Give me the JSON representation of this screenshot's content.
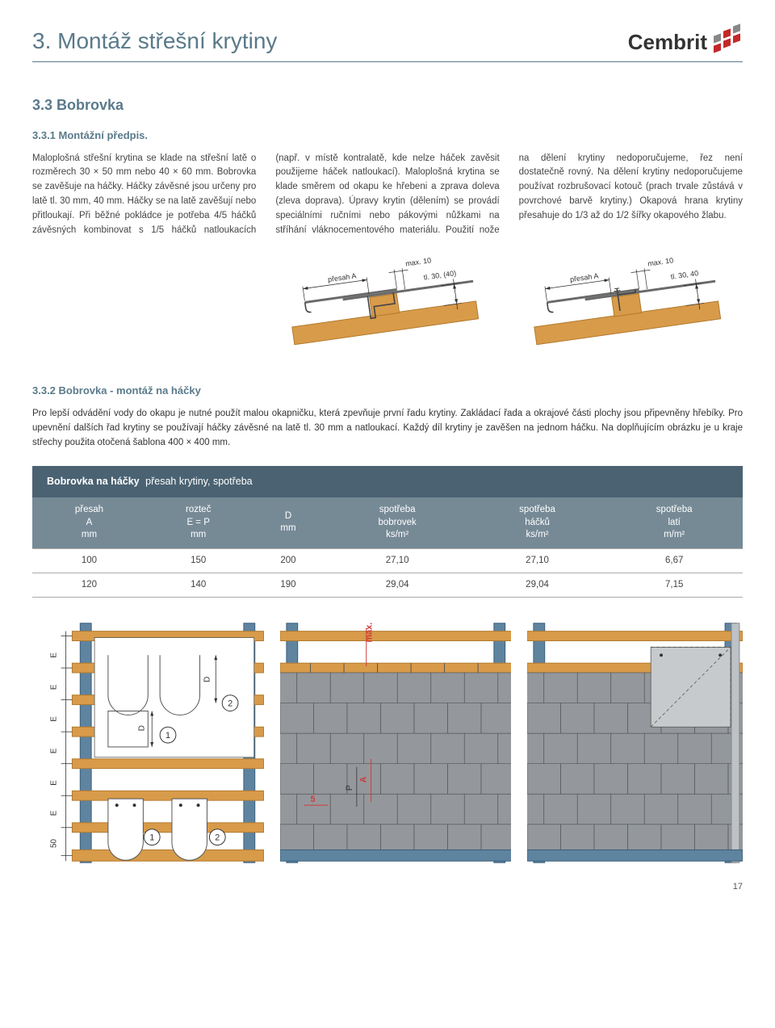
{
  "brand": "Cembrit",
  "chapter_title": "3. Montáž střešní krytiny",
  "section1": {
    "title": "3.3 Bobrovka",
    "sub": "3.3.1 Montážní předpis.",
    "body": "Maloplošná střešní krytina se klade na střešní latě o rozměrech 30 × 50 mm nebo 40 × 60 mm. Bobrovka se zavěšuje na háčky. Háčky závěsné jsou určeny pro latě tl. 30 mm, 40 mm. Háčky se na latě zavěšují nebo přitloukají. Při běžné pokládce je potřeba 4/5 háčků závěsných kombinovat s 1/5 háčků natloukacích (např. v místě kontralatě, kde nelze háček zavěsit použijeme háček natloukací). Maloplošná krytina se klade směrem od okapu ke hřebeni a zprava doleva (zleva doprava). Úpravy krytin (dělením) se provádí speciálními ručními nebo pákovými nůžkami na stříhání vláknocementového materiálu. Použití nože na dělení krytiny nedoporučujeme, řez není dostatečně rovný. Na dělení krytiny nedoporučujeme používat rozbrušovací kotouč (prach trvale zůstává v povrchové barvě krytiny.) Okapová hrana krytiny přesahuje do 1/3 až do 1/2 šířky okapového žlabu."
  },
  "diagram_labels": {
    "presah": "přesah A",
    "max10": "max. 10",
    "tl1": "tl. 30, (40)",
    "tl2": "tl. 30, 40"
  },
  "section2": {
    "title": "3.3.2 Bobrovka - montáž na háčky",
    "intro": "Pro lepší odvádění vody do okapu je nutné použít malou okapničku, která zpevňuje první řadu krytiny. Zakládací řada a okrajové části plochy jsou připevněny hřebíky. Pro upevnění dalších řad krytiny se používají háčky závěsné na latě tl. 30 mm a natloukací. Každý díl krytiny je zavěšen na jednom háčku. Na doplňujícím obrázku je u kraje střechy použita otočená šablona 400 × 400 mm."
  },
  "table": {
    "title_bold": "Bobrovka na háčky",
    "title_light": "přesah krytiny, spotřeba",
    "columns": [
      {
        "l1": "přesah",
        "l2": "A",
        "l3": "mm"
      },
      {
        "l1": "rozteč",
        "l2": "E = P",
        "l3": "mm"
      },
      {
        "l1": "",
        "l2": "D",
        "l3": "mm"
      },
      {
        "l1": "spotřeba",
        "l2": "bobrovek",
        "l3": "ks/m²"
      },
      {
        "l1": "spotřeba",
        "l2": "háčků",
        "l3": "ks/m²"
      },
      {
        "l1": "spotřeba",
        "l2": "latí",
        "l3": "m/m²"
      }
    ],
    "rows": [
      [
        "100",
        "150",
        "200",
        "27,10",
        "27,10",
        "6,67"
      ],
      [
        "120",
        "140",
        "190",
        "29,04",
        "29,04",
        "7,15"
      ]
    ]
  },
  "bottom_labels": {
    "E": "E",
    "fifty": "50",
    "D": "D",
    "one": "1",
    "two": "2",
    "five": "5",
    "P": "P",
    "A": "A",
    "max10": "max. 10"
  },
  "colors": {
    "wood": "#d89b4a",
    "wood_dark": "#b37a2e",
    "slate": "#6a6a6a",
    "rafter": "#5f84a0",
    "rafter_dark": "#3a5f7a",
    "red": "#d03a3a",
    "header_blue": "#4a6272",
    "header_blue2": "#768a96",
    "text_blue": "#5a7a8a",
    "tile_fill": "#94989c",
    "tile_stroke": "#555"
  },
  "page_number": "17"
}
